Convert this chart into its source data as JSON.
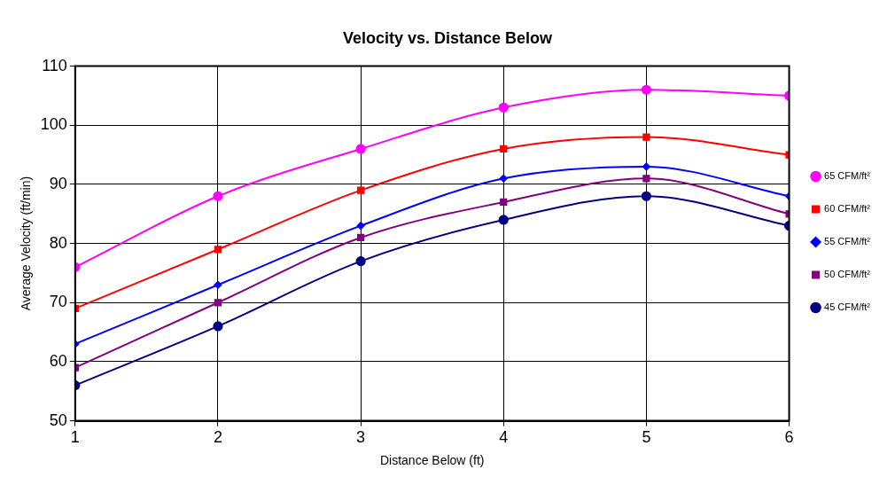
{
  "chart_data": {
    "type": "line",
    "title": "Velocity vs. Distance Below",
    "xlabel": "Distance Below (ft)",
    "ylabel": "Average Velocity (ft/min)",
    "x": [
      1,
      2,
      3,
      4,
      5,
      6
    ],
    "xlim": [
      1,
      6
    ],
    "xticks": [
      1,
      2,
      3,
      4,
      5,
      6
    ],
    "ylim": [
      50,
      110
    ],
    "yticks": [
      50,
      60,
      70,
      80,
      90,
      100,
      110
    ],
    "grid": true,
    "legend": "right",
    "series": [
      {
        "name": "65 CFM/ft²",
        "color": "#ff00ff",
        "marker": "circle",
        "values": [
          76,
          88,
          96,
          103,
          106,
          105
        ]
      },
      {
        "name": "60 CFM/ft²",
        "color": "#ff0000",
        "marker": "square",
        "values": [
          69,
          79,
          89,
          96,
          98,
          95
        ]
      },
      {
        "name": "55 CFM/ft²",
        "color": "#0000ff",
        "marker": "diamond",
        "values": [
          63,
          73,
          83,
          91,
          93,
          88
        ]
      },
      {
        "name": "50 CFM/ft²",
        "color": "#800080",
        "marker": "square",
        "values": [
          59,
          70,
          81,
          87,
          91,
          85
        ]
      },
      {
        "name": "45 CFM/ft²",
        "color": "#000080",
        "marker": "circle",
        "values": [
          56,
          66,
          77,
          84,
          88,
          83
        ]
      }
    ]
  }
}
